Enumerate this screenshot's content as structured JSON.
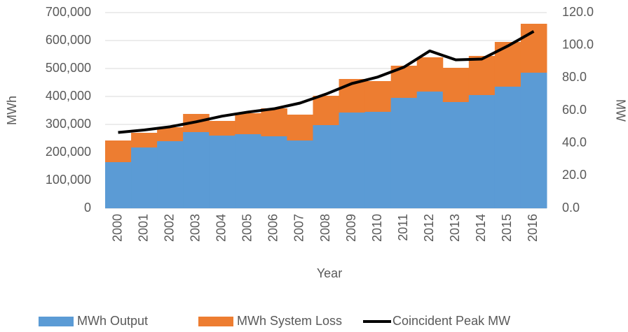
{
  "chart_data": {
    "type": "bar",
    "stacked": true,
    "x_label": "Year",
    "y_label": "MWh",
    "y2_label": "MW",
    "categories": [
      "2000",
      "2001",
      "2002",
      "2003",
      "2004",
      "2005",
      "2006",
      "2007",
      "2008",
      "2009",
      "2010",
      "2011",
      "2012",
      "2013",
      "2014",
      "2015",
      "2016"
    ],
    "series": [
      {
        "name": "MWh Output",
        "type": "bar",
        "color": "#5b9bd5",
        "values": [
          165000,
          217500,
          240000,
          272500,
          260000,
          265000,
          257500,
          242500,
          297500,
          342500,
          345000,
          395000,
          417500,
          380000,
          405000,
          435000,
          485000
        ]
      },
      {
        "name": "MWh System Loss",
        "type": "bar",
        "color": "#ed7d31",
        "values": [
          77500,
          52500,
          50000,
          65000,
          52500,
          75000,
          100000,
          92500,
          105000,
          120000,
          110000,
          115000,
          122500,
          122500,
          140000,
          160000,
          175000
        ]
      },
      {
        "name": "Coincident Peak MW",
        "type": "line",
        "axis": "y2",
        "color": "#000000",
        "values": [
          46.5,
          48,
          50,
          53,
          56.5,
          59,
          61,
          64.5,
          70,
          76.5,
          80.5,
          86.5,
          96.5,
          91,
          91.5,
          99.5,
          108.5
        ]
      }
    ],
    "ylim": [
      0,
      700000
    ],
    "yticks": [
      0,
      {
        "value": 100000,
        "label": "100,000"
      },
      {
        "value": 200000,
        "label": "200,000"
      },
      {
        "value": 300000,
        "label": "300,000"
      },
      {
        "value": 400000,
        "label": "400,000"
      },
      {
        "value": 500000,
        "label": "500,000"
      },
      {
        "value": 600000,
        "label": "600,000"
      },
      {
        "value": 700000,
        "label": "700,000"
      }
    ],
    "y2lim": [
      0,
      120
    ],
    "y2ticks": [
      {
        "value": 0,
        "label": "0.0"
      },
      {
        "value": 20,
        "label": "20.0"
      },
      {
        "value": 40,
        "label": "40.0"
      },
      {
        "value": 60,
        "label": "60.0"
      },
      {
        "value": 80,
        "label": "80.0"
      },
      {
        "value": 100,
        "label": "100.0"
      },
      {
        "value": 120,
        "label": "120.0"
      }
    ],
    "grid": true,
    "legend": "bottom"
  }
}
